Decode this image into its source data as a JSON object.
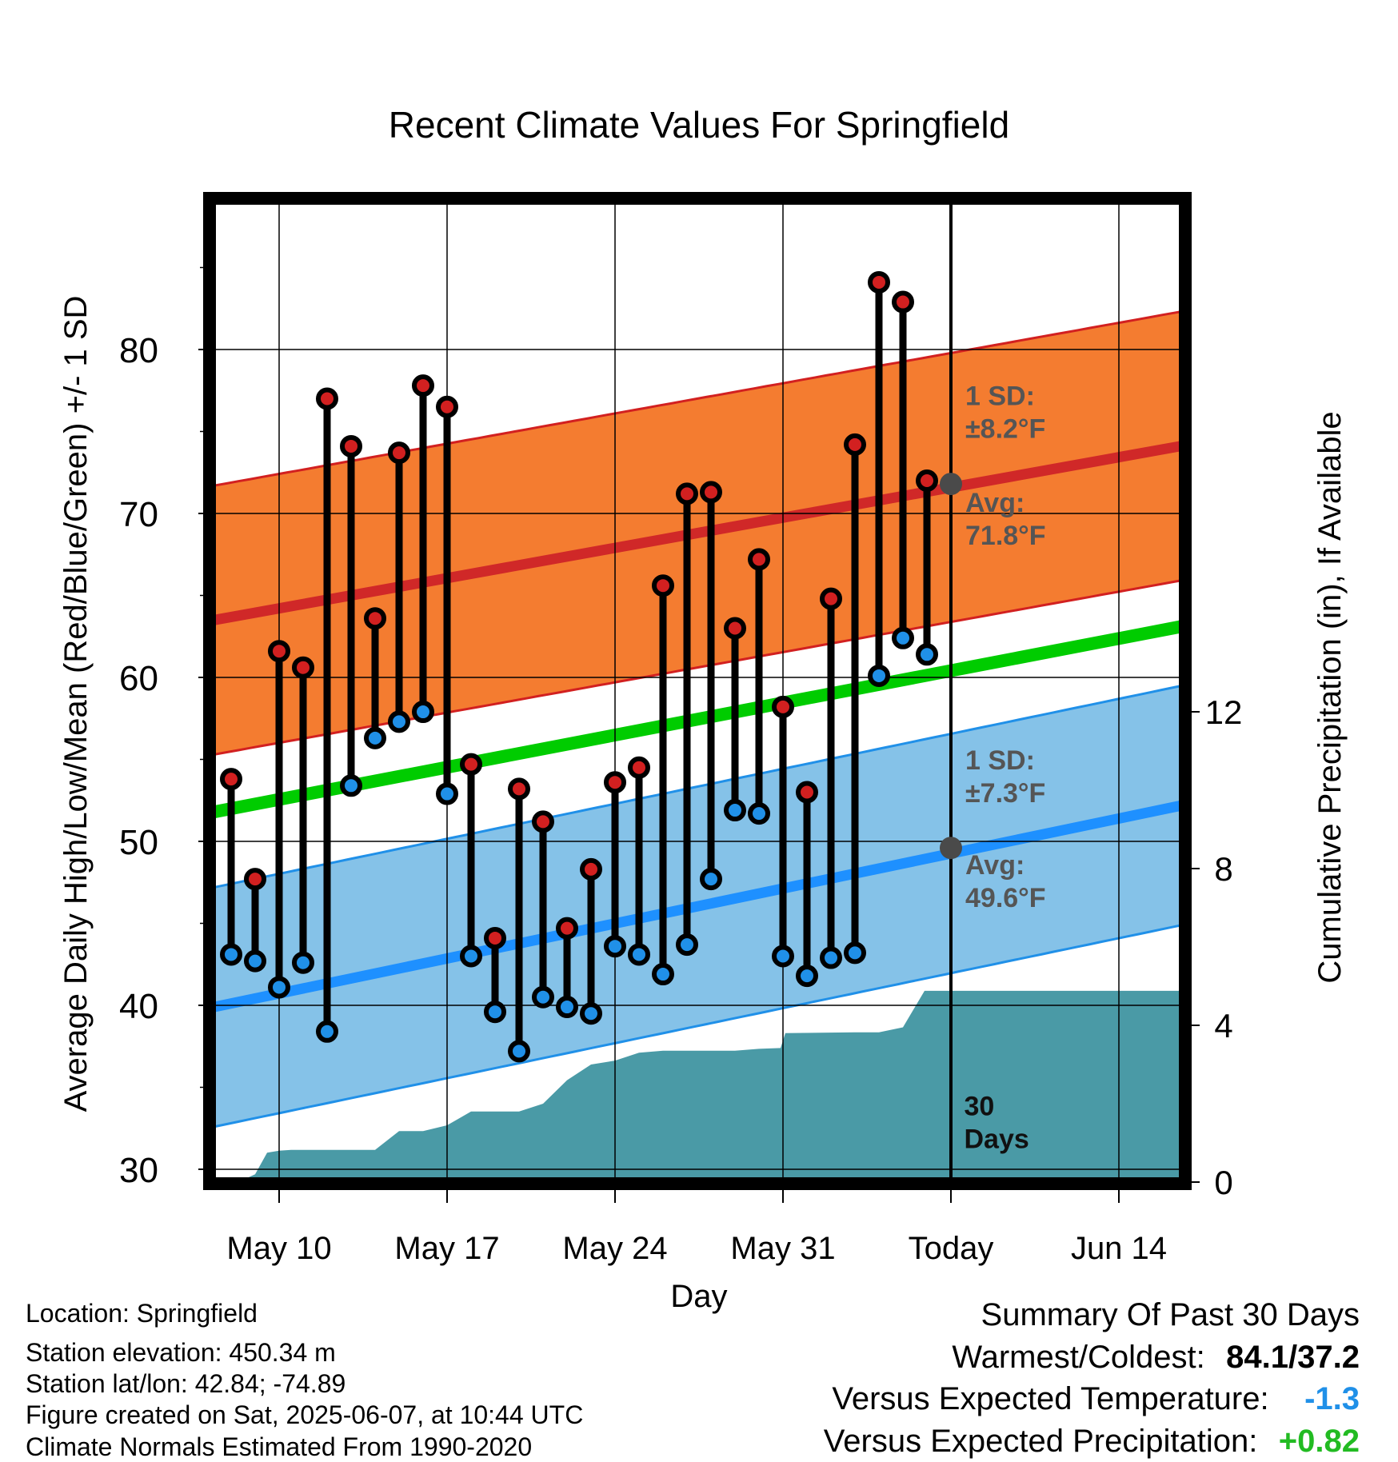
{
  "chart_data": {
    "type": "line",
    "title": "Recent Climate Values For Springfield",
    "xlabel": "Day",
    "ylabel": "Average Daily High/Low/Mean (Red/Blue/Green) +/- 1 SD",
    "y2label": "Cumulative Precipitation (in), If Available",
    "ylim": [
      29.5,
      89.5
    ],
    "y_ticks": [
      "30",
      "40",
      "50",
      "60",
      "70",
      "80"
    ],
    "y2_ticks": [
      "0",
      "4",
      "8",
      "12"
    ],
    "y2_tick_values": [
      0,
      4,
      8,
      12
    ],
    "precip_ylim": [
      0,
      14
    ],
    "x_start_date": "May 7",
    "x_range_days": [
      0.3,
      41.3
    ],
    "x_tick_labels": [
      "May 10",
      "May 17",
      "May 24",
      "May 31",
      "Today",
      "Jun 14"
    ],
    "x_tick_days": [
      3,
      10,
      17,
      24,
      31,
      38
    ],
    "today_day": 31,
    "today_label": [
      "30",
      "Days"
    ],
    "normal_high": {
      "start": 63.5,
      "end": 74.3,
      "sd": 8.2
    },
    "normal_low": {
      "start": 39.9,
      "end": 52.4,
      "sd": 7.3
    },
    "normal_mean": {
      "start": 51.8,
      "end": 63.3
    },
    "annotations": {
      "high_sd": [
        "1 SD:",
        "±8.2°F"
      ],
      "high_avg": [
        "Avg:",
        "71.8°F"
      ],
      "low_sd": [
        "1 SD:",
        "±7.3°F"
      ],
      "low_avg": [
        "Avg:",
        "49.6°F"
      ]
    },
    "avg_markers": [
      {
        "day": 31,
        "value": 71.8
      },
      {
        "day": 31,
        "value": 49.6
      }
    ],
    "series": [
      {
        "name": "High",
        "color": "#d22020",
        "points": [
          [
            1,
            53.8
          ],
          [
            2,
            47.7
          ],
          [
            3,
            61.6
          ],
          [
            4,
            60.6
          ],
          [
            5,
            77.0
          ],
          [
            6,
            74.1
          ],
          [
            7,
            63.6
          ],
          [
            8,
            73.7
          ],
          [
            9,
            77.8
          ],
          [
            10,
            76.5
          ],
          [
            11,
            54.7
          ],
          [
            12,
            44.1
          ],
          [
            13,
            53.2
          ],
          [
            14,
            51.2
          ],
          [
            15,
            44.7
          ],
          [
            16,
            48.3
          ],
          [
            17,
            53.6
          ],
          [
            18,
            54.5
          ],
          [
            19,
            65.6
          ],
          [
            20,
            71.2
          ],
          [
            21,
            71.3
          ],
          [
            22,
            63.0
          ],
          [
            23,
            67.2
          ],
          [
            24,
            58.2
          ],
          [
            25,
            53.0
          ],
          [
            26,
            64.8
          ],
          [
            27,
            74.2
          ],
          [
            28,
            84.1
          ],
          [
            29,
            82.9
          ],
          [
            30,
            72.0
          ]
        ]
      },
      {
        "name": "Low",
        "color": "#2090e8",
        "points": [
          [
            1,
            43.1
          ],
          [
            2,
            42.7
          ],
          [
            3,
            41.1
          ],
          [
            4,
            42.6
          ],
          [
            5,
            38.4
          ],
          [
            6,
            53.4
          ],
          [
            7,
            56.3
          ],
          [
            8,
            57.3
          ],
          [
            9,
            57.9
          ],
          [
            10,
            52.9
          ],
          [
            11,
            43.0
          ],
          [
            12,
            39.6
          ],
          [
            13,
            37.2
          ],
          [
            14,
            40.5
          ],
          [
            15,
            39.9
          ],
          [
            16,
            39.5
          ],
          [
            17,
            43.6
          ],
          [
            18,
            43.1
          ],
          [
            19,
            41.9
          ],
          [
            20,
            43.7
          ],
          [
            21,
            47.7
          ],
          [
            22,
            51.9
          ],
          [
            23,
            51.7
          ],
          [
            24,
            43.0
          ],
          [
            25,
            41.8
          ],
          [
            26,
            42.9
          ],
          [
            27,
            43.2
          ],
          [
            28,
            60.1
          ],
          [
            29,
            62.4
          ],
          [
            30,
            61.4
          ]
        ]
      },
      {
        "name": "Precipitation",
        "color": "#4a9aa6",
        "points": [
          [
            1.3,
            0
          ],
          [
            2.0,
            0.2
          ],
          [
            2.5,
            0.75
          ],
          [
            3.0,
            0.8
          ],
          [
            3.5,
            0.82
          ],
          [
            7.0,
            0.82
          ],
          [
            8.0,
            1.3
          ],
          [
            9.0,
            1.3
          ],
          [
            10.0,
            1.45
          ],
          [
            11.0,
            1.8
          ],
          [
            13.0,
            1.8
          ],
          [
            14.0,
            2.0
          ],
          [
            15.0,
            2.6
          ],
          [
            16.0,
            3.0
          ],
          [
            17.0,
            3.1
          ],
          [
            18.0,
            3.3
          ],
          [
            19.0,
            3.35
          ],
          [
            22.0,
            3.35
          ],
          [
            23.0,
            3.4
          ],
          [
            23.9,
            3.42
          ],
          [
            24.1,
            3.8
          ],
          [
            27.0,
            3.82
          ],
          [
            28.0,
            3.82
          ],
          [
            29.0,
            3.95
          ],
          [
            29.9,
            4.88
          ],
          [
            41.3,
            4.88
          ]
        ]
      }
    ]
  },
  "footer": {
    "location": "Location: Springfield",
    "elevation": "Station elevation: 450.34 m",
    "latlon": "Station lat/lon: 42.84; -74.89",
    "created": "Figure created on Sat, 2025-06-07, at 10:44 UTC",
    "normals": "Climate Normals Estimated From 1990-2020"
  },
  "summary": {
    "title": "Summary Of Past 30 Days",
    "warmest_label": "Warmest/Coldest:",
    "warmest_value": "84.1/37.2",
    "temp_label": "Versus Expected Temperature:",
    "temp_value": "-1.3",
    "temp_color": "#2090e8",
    "precip_label": "Versus Expected Precipitation:",
    "precip_value": "+0.82",
    "precip_color": "#22bb22"
  }
}
